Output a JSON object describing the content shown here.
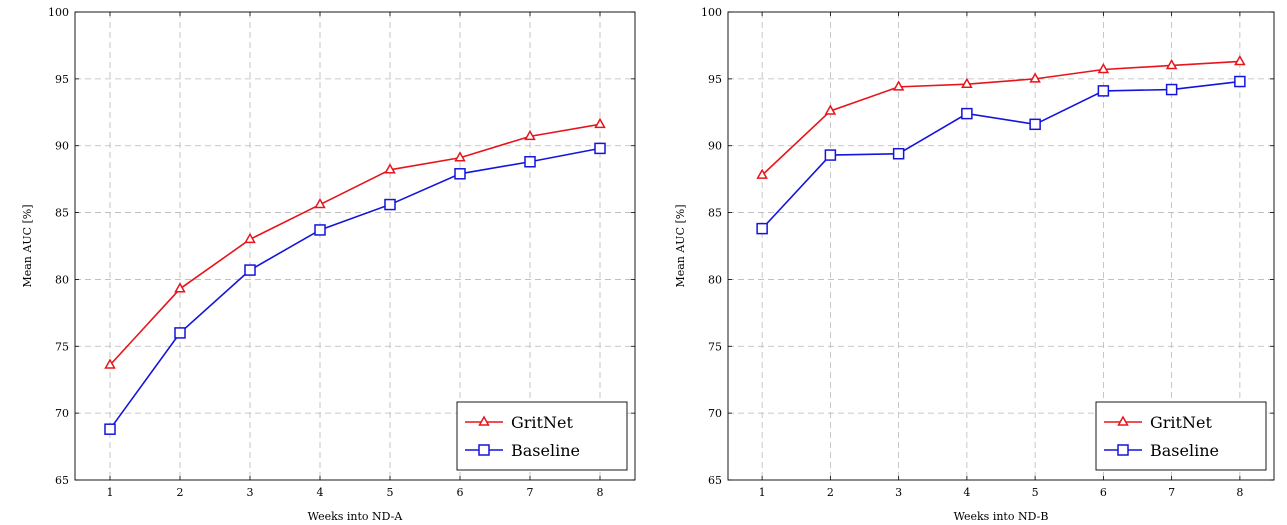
{
  "chart_data": [
    {
      "type": "line",
      "xlabel": "Weeks into ND-A",
      "ylabel": "Mean AUC [%]",
      "x": [
        1,
        2,
        3,
        4,
        5,
        6,
        7,
        8
      ],
      "xlim": [
        0.5,
        8.5
      ],
      "ylim": [
        65,
        100
      ],
      "yticks": [
        65,
        70,
        75,
        80,
        85,
        90,
        95,
        100
      ],
      "grid": true,
      "legend_position": "bottom-right",
      "series": [
        {
          "name": "GritNet",
          "color": "#e8141b",
          "marker": "triangle",
          "values": [
            73.6,
            79.3,
            83.0,
            85.6,
            88.2,
            89.1,
            90.7,
            91.6
          ]
        },
        {
          "name": "Baseline",
          "color": "#1414dc",
          "marker": "square",
          "values": [
            68.8,
            76.0,
            80.7,
            83.7,
            85.6,
            87.9,
            88.8,
            89.8
          ]
        }
      ]
    },
    {
      "type": "line",
      "xlabel": "Weeks into ND-B",
      "ylabel": "Mean AUC [%]",
      "x": [
        1,
        2,
        3,
        4,
        5,
        6,
        7,
        8
      ],
      "xlim": [
        0.5,
        8.5
      ],
      "ylim": [
        65,
        100
      ],
      "yticks": [
        65,
        70,
        75,
        80,
        85,
        90,
        95,
        100
      ],
      "grid": true,
      "legend_position": "bottom-right",
      "series": [
        {
          "name": "GritNet",
          "color": "#e8141b",
          "marker": "triangle",
          "values": [
            87.8,
            92.6,
            94.4,
            94.6,
            95.0,
            95.7,
            96.0,
            96.3
          ]
        },
        {
          "name": "Baseline",
          "color": "#1414dc",
          "marker": "square",
          "values": [
            83.8,
            89.3,
            89.4,
            92.4,
            91.6,
            94.1,
            94.2,
            94.8
          ]
        }
      ]
    }
  ]
}
